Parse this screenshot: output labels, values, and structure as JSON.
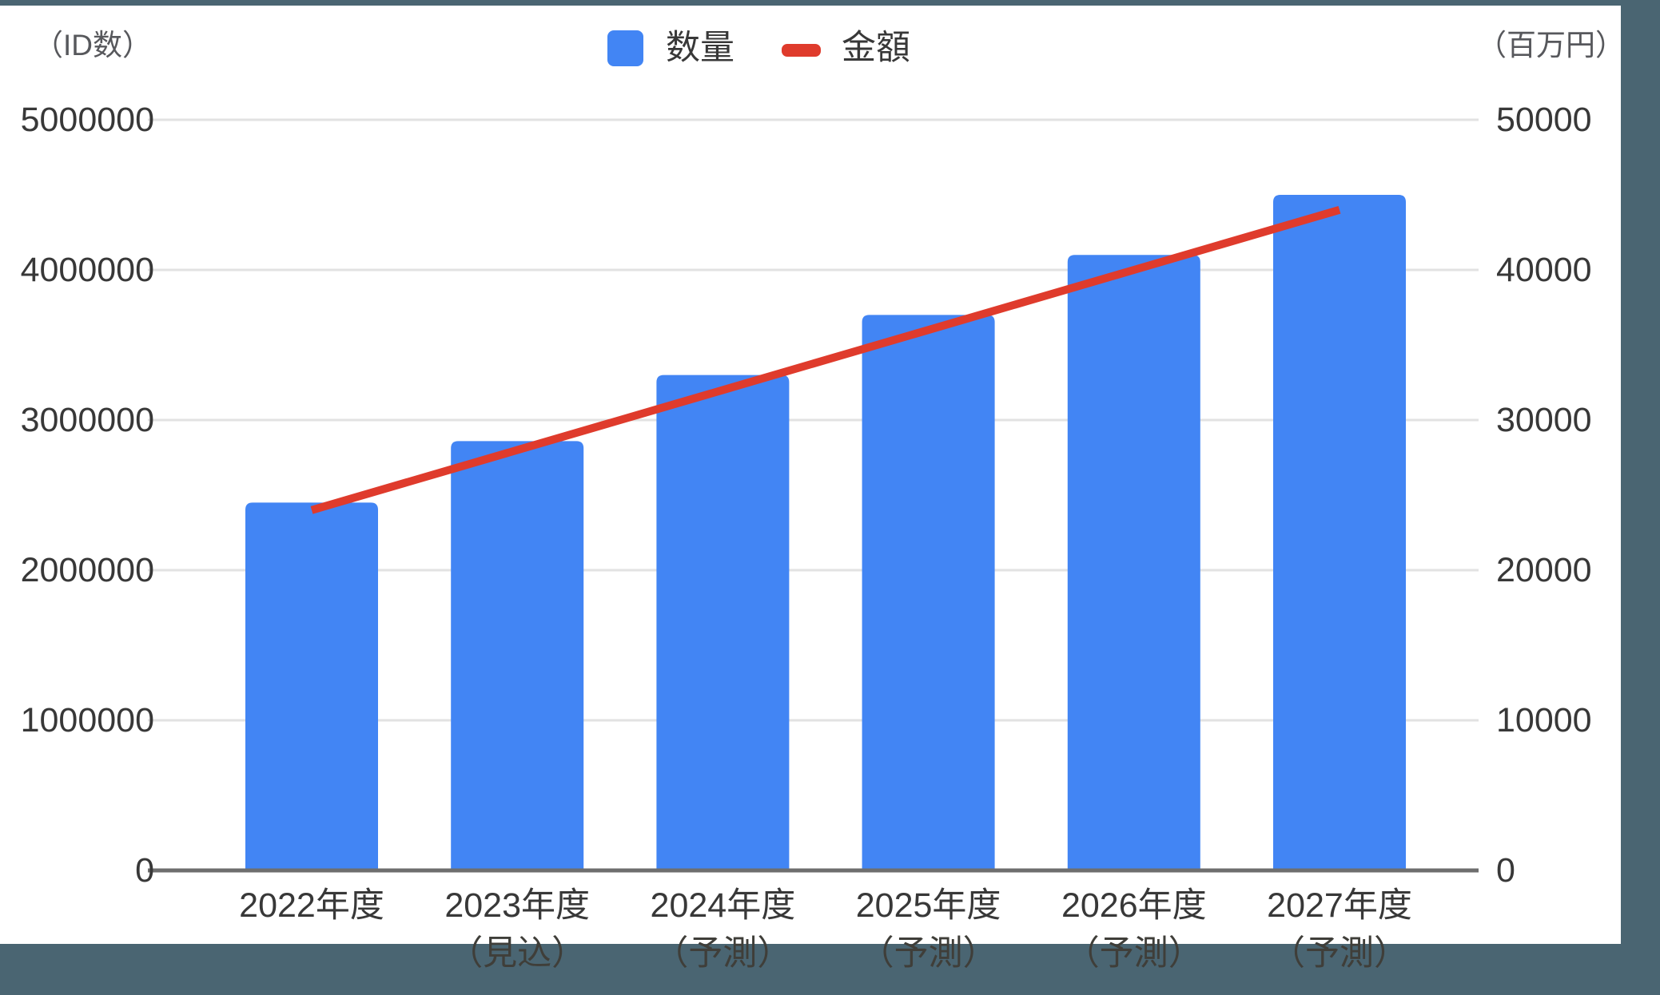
{
  "chart_data": {
    "type": "combo-bar-line",
    "categories": [
      "2022年度",
      "2023年度",
      "2024年度",
      "2025年度",
      "2026年度",
      "2027年度"
    ],
    "category_sublabels": [
      "",
      "（見込）",
      "（予測）",
      "（予測）",
      "（予測）",
      "（予測）"
    ],
    "series": [
      {
        "name": "数量",
        "type": "bar",
        "axis": "left",
        "color": "#4285f4",
        "values": [
          2450000,
          2860000,
          3300000,
          3700000,
          4100000,
          4500000
        ]
      },
      {
        "name": "金額",
        "type": "line",
        "axis": "right",
        "color": "#df3b2c",
        "values": [
          24000,
          28000,
          32000,
          36000,
          40000,
          44000
        ]
      }
    ],
    "left_axis": {
      "unit_label": "（ID数）",
      "max": 5000000,
      "tick_labels": [
        "0",
        "1000000",
        "2000000",
        "3000000",
        "4000000",
        "5000000"
      ]
    },
    "right_axis": {
      "unit_label": "（百万円）",
      "max": 50000,
      "tick_labels": [
        "0",
        "10000",
        "20000",
        "30000",
        "40000",
        "50000"
      ]
    },
    "legend_position": "top-center",
    "grid": true
  },
  "colors": {
    "page_background": "#4a6572",
    "panel_background": "#ffffff",
    "gridline": "#e2e2e2",
    "axis_line": "#6e6e6e",
    "tick_text": "#383838",
    "unit_text": "#57585c",
    "bar": "#4285f4",
    "line": "#df3b2c"
  }
}
